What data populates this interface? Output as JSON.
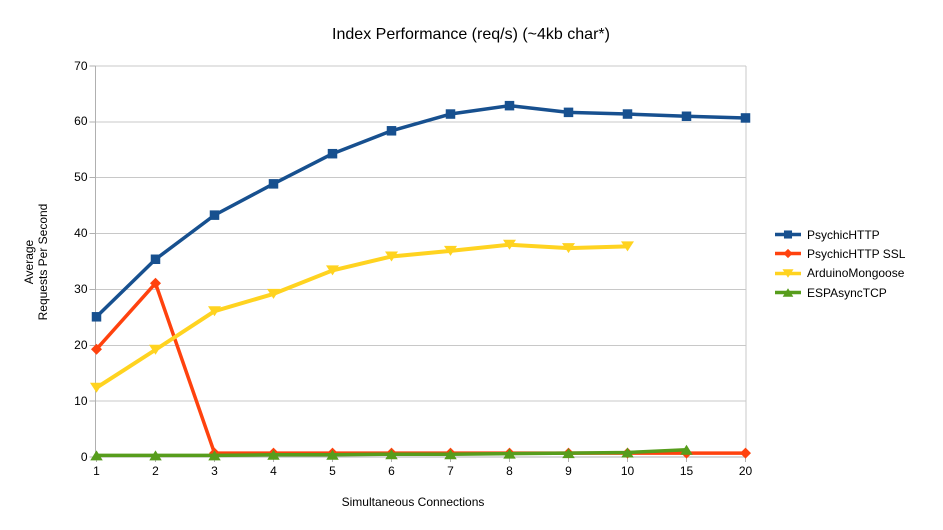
{
  "chart_data": {
    "type": "line",
    "title": "Index Performance (req/s) (~4kb char*)",
    "xlabel": "Simultaneous Connections",
    "ylabel_lines": [
      "Average",
      "Requests Per Second"
    ],
    "categories": [
      "1",
      "2",
      "3",
      "4",
      "5",
      "6",
      "7",
      "8",
      "9",
      "10",
      "15",
      "20"
    ],
    "ylim": [
      0,
      70
    ],
    "ytick_step": 10,
    "grid": "horizontal-only",
    "legend_position": "right",
    "series": [
      {
        "name": "PsychicHTTP",
        "color": "#17508F",
        "marker": "square",
        "line_width": 3.5,
        "values": [
          25.1,
          35.4,
          43.3,
          48.9,
          54.3,
          58.4,
          61.4,
          62.9,
          61.7,
          61.4,
          61.0,
          60.7
        ]
      },
      {
        "name": "PsychicHTTP SSL",
        "color": "#FF420E",
        "marker": "diamond",
        "line_width": 3.5,
        "values": [
          19.3,
          31.1,
          0.7,
          0.7,
          0.7,
          0.7,
          0.7,
          0.7,
          0.7,
          0.7,
          0.7,
          0.7
        ]
      },
      {
        "name": "ArduinoMongoose",
        "color": "#FFD320",
        "marker": "triangle-down",
        "line_width": 4,
        "values": [
          12.4,
          19.2,
          26.1,
          29.2,
          33.4,
          35.9,
          36.9,
          38.0,
          37.4,
          37.7,
          null,
          null
        ]
      },
      {
        "name": "ESPAsyncTCP",
        "color": "#579D1C",
        "marker": "triangle-up",
        "line_width": 3.5,
        "values": [
          0.3,
          0.3,
          0.3,
          0.4,
          0.4,
          0.5,
          0.5,
          0.6,
          0.7,
          0.8,
          1.3,
          null
        ]
      }
    ],
    "axis_color": "#B0B0B0",
    "grid_color": "#C8C8C8",
    "text_color": "#000000",
    "background_color": "#FFFFFF"
  }
}
